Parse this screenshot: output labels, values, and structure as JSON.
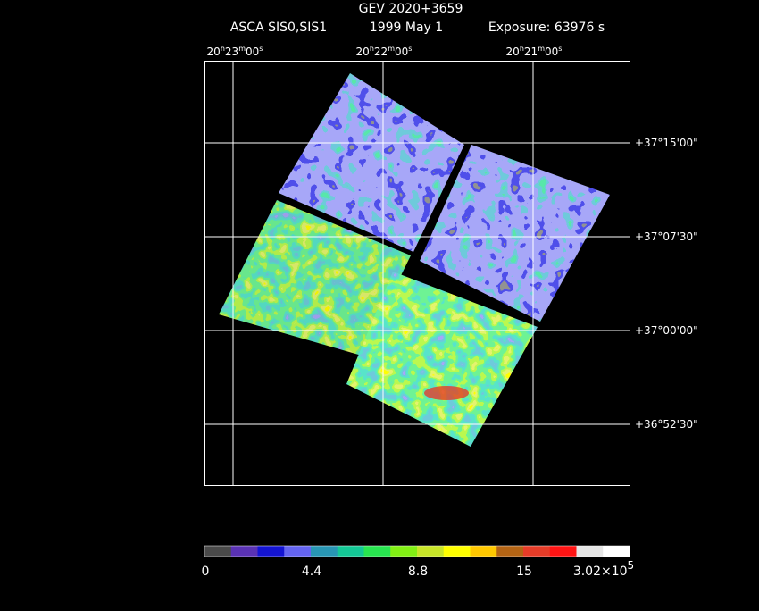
{
  "header": {
    "title": "GEV 2020+3659",
    "instrument": "ASCA SIS0,SIS1",
    "date": "1999 May  1",
    "exposure": "Exposure: 63976 s"
  },
  "ra_labels": [
    [
      "20",
      "h",
      "23",
      "m",
      "00",
      "s"
    ],
    [
      "20",
      "h",
      "22",
      "m",
      "00",
      "s"
    ],
    [
      "20",
      "h",
      "21",
      "m",
      "00",
      "s"
    ]
  ],
  "dec_labels": [
    "+37°15'00\"",
    "+37°07'30\"",
    "+37°00'00\"",
    "+36°52'30\""
  ],
  "colorbar": {
    "colors": [
      "#4a4a4a",
      "#5a32b4",
      "#1414d2",
      "#6464f0",
      "#2896b4",
      "#14c896",
      "#28e650",
      "#82f014",
      "#c8e628",
      "#ffff00",
      "#ffc800",
      "#b46414",
      "#e63c28",
      "#ff1414",
      "#e6e6e6",
      "#ffffff"
    ],
    "labels": [
      "0",
      "4.4",
      "8.8",
      "15"
    ],
    "max_label": {
      "mantissa": "3.02×10",
      "exponent": "5"
    }
  }
}
